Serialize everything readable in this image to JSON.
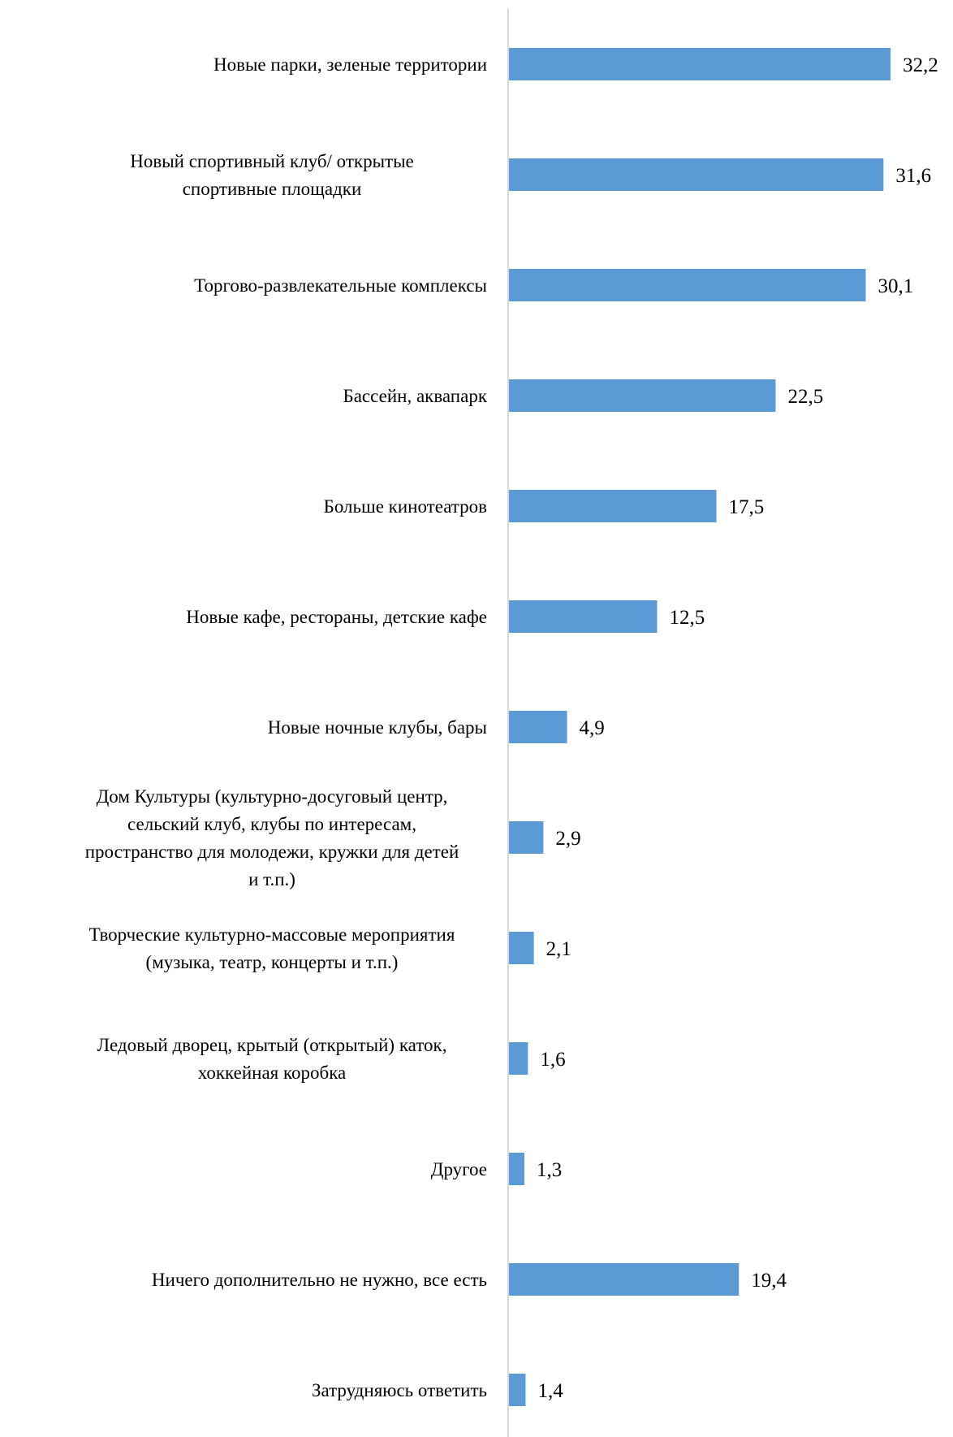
{
  "chart_data": {
    "type": "bar",
    "orientation": "horizontal",
    "categories": [
      [
        "Новые парки, зеленые территории"
      ],
      [
        "Новый спортивный клуб/ открытые",
        "спортивные площадки"
      ],
      [
        "Торгово-развлекательные комплексы"
      ],
      [
        "Бассейн, аквапарк"
      ],
      [
        "Больше кинотеатров"
      ],
      [
        "Новые кафе, рестораны, детские кафе"
      ],
      [
        "Новые ночные клубы, бары"
      ],
      [
        "Дом Культуры (культурно-досуговый центр,",
        "сельский клуб, клубы по интересам,",
        "пространство для молодежи, кружки для детей",
        "и т.п.)"
      ],
      [
        "Творческие культурно-массовые мероприятия",
        "(музыка, театр, концерты  и т.п.)"
      ],
      [
        "Ледовый дворец, крытый (открытый) каток,",
        "хоккейная коробка"
      ],
      [
        "Другое"
      ],
      [
        "Ничего дополнительно не нужно, все есть"
      ],
      [
        "Затрудняюсь ответить"
      ]
    ],
    "values": [
      32.2,
      31.6,
      30.1,
      22.5,
      17.5,
      12.5,
      4.9,
      2.9,
      2.1,
      1.6,
      1.3,
      19.4,
      1.4
    ],
    "value_labels": [
      "32,2",
      "31,6",
      "30,1",
      "22,5",
      "17,5",
      "12,5",
      "4,9",
      "2,9",
      "2,1",
      "1,6",
      "1,3",
      "19,4",
      "1,4"
    ],
    "title": "",
    "xlabel": "",
    "ylabel": "",
    "xlim": [
      0,
      35
    ],
    "grid": false,
    "legend": "none",
    "bar_color": "#5b9bd5",
    "axis_color": "#d9d9d9"
  }
}
